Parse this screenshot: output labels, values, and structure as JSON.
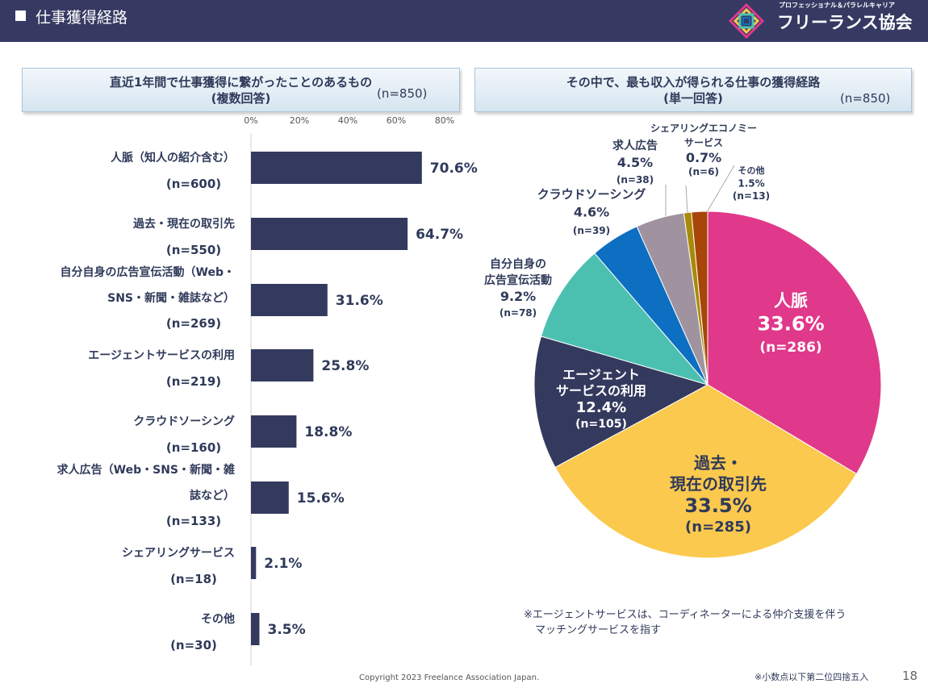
{
  "header": {
    "title": "仕事獲得経路"
  },
  "logo": {
    "subtitle": "プロフェッショナル＆パラレルキャリア",
    "name": "フリーランス協会"
  },
  "colors": {
    "header_bg": "#363a63",
    "bar": "#343a5e"
  },
  "left_panel": {
    "line1": "直近1年間で仕事獲得に繋がったことのあるもの",
    "line2": "(複数回答)",
    "n": "(n=850)"
  },
  "right_panel": {
    "line1": "その中で、最も収入が得られる仕事の獲得経路",
    "line2": "(単一回答)",
    "n": "(n=850)"
  },
  "note": [
    "※エージェントサービスは、コーディネーターによる仲介支援を伴う",
    "マッチングサービスを指す"
  ],
  "copyright": "Copyright 2023 Freelance Association Japan.",
  "footnote": "※小数点以下第二位四捨五入",
  "page_number": "18",
  "chart_data": [
    {
      "type": "bar",
      "orientation": "horizontal",
      "xlim": [
        0,
        80
      ],
      "ticks": [
        "0%",
        "20%",
        "40%",
        "60%",
        "80%"
      ],
      "categories": [
        {
          "label_lines": [
            "人脈（知人の紹介含む）"
          ],
          "n": "(n=600)",
          "value": 70.6,
          "value_label": "70.6%"
        },
        {
          "label_lines": [
            "過去・現在の取引先"
          ],
          "n": "(n=550)",
          "value": 64.7,
          "value_label": "64.7%"
        },
        {
          "label_lines": [
            "自分自身の広告宣伝活動（Web・",
            "SNS・新聞・雑誌など）"
          ],
          "n": "(n=269)",
          "value": 31.6,
          "value_label": "31.6%"
        },
        {
          "label_lines": [
            "エージェントサービスの利用"
          ],
          "n": "(n=219)",
          "value": 25.8,
          "value_label": "25.8%"
        },
        {
          "label_lines": [
            "クラウドソーシング"
          ],
          "n": "(n=160)",
          "value": 18.8,
          "value_label": "18.8%"
        },
        {
          "label_lines": [
            "求人広告（Web・SNS・新聞・雑",
            "誌など）"
          ],
          "n": "(n=133)",
          "value": 15.6,
          "value_label": "15.6%"
        },
        {
          "label_lines": [
            "シェアリングサービス"
          ],
          "n": "(n=18)",
          "value": 2.1,
          "value_label": "2.1%"
        },
        {
          "label_lines": [
            "その他"
          ],
          "n": "(n=30)",
          "value": 3.5,
          "value_label": "3.5%"
        }
      ]
    },
    {
      "type": "pie",
      "slices": [
        {
          "label_lines": [
            "人脈"
          ],
          "value": 33.6,
          "pct": "33.6%",
          "n": "(n=286)",
          "color": "#e0388a"
        },
        {
          "label_lines": [
            "過去・",
            "現在の取引先"
          ],
          "value": 33.5,
          "pct": "33.5%",
          "n": "(n=285)",
          "color": "#fbc94d"
        },
        {
          "label_lines": [
            "エージェント",
            "サービスの利用"
          ],
          "value": 12.4,
          "pct": "12.4%",
          "n": "(n=105)",
          "color": "#343a5e"
        },
        {
          "label_lines": [
            "自分自身の",
            "広告宣伝活動"
          ],
          "value": 9.2,
          "pct": "9.2%",
          "n": "(n=78)",
          "color": "#4cc0b0"
        },
        {
          "label_lines": [
            "クラウドソーシング"
          ],
          "value": 4.6,
          "pct": "4.6%",
          "n": "(n=39)",
          "color": "#0d6fc2"
        },
        {
          "label_lines": [
            "求人広告"
          ],
          "value": 4.5,
          "pct": "4.5%",
          "n": "(n=38)",
          "color": "#a0939f"
        },
        {
          "label_lines": [
            "シェアリングエコノミー",
            "サービス"
          ],
          "value": 0.7,
          "pct": "0.7%",
          "n": "(n=6)",
          "color": "#a88a0a"
        },
        {
          "label_lines": [
            "その他"
          ],
          "value": 1.5,
          "pct": "1.5%",
          "n": "(n=13)",
          "color": "#a84508"
        }
      ]
    }
  ]
}
